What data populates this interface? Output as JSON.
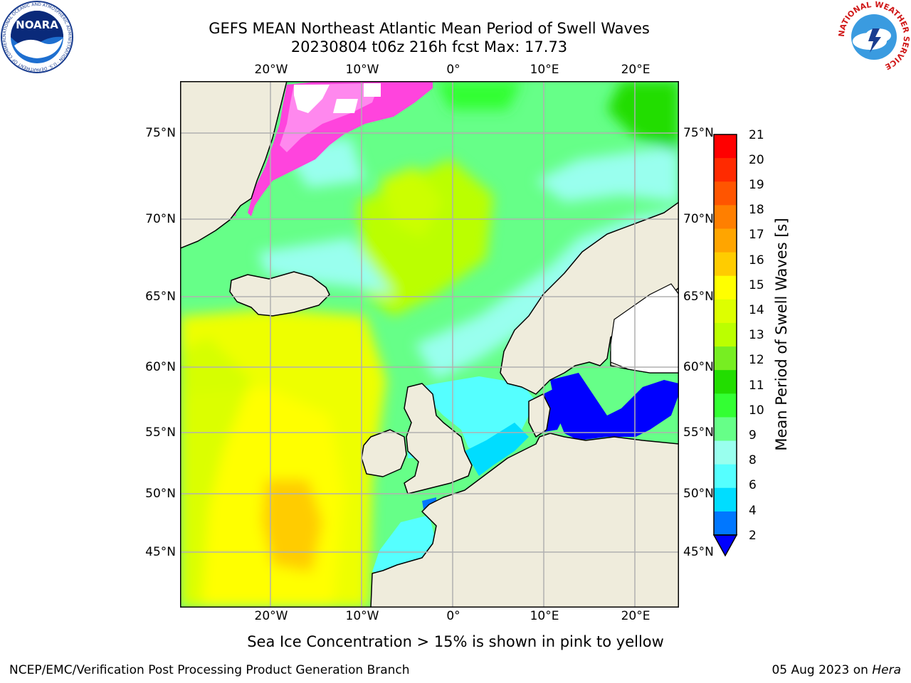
{
  "header": {
    "title_line1": "GEFS MEAN Northeast Atlantic Mean Period of Swell Waves",
    "title_line2": "20230804 t06z 216h fcst   Max: 17.73"
  },
  "logos": {
    "left": {
      "name": "NOARA",
      "ring_text": "NATIONAL OCEANIC AND ATMOSPHERIC ADMINISTRATION · U.S. DEPARTMENT OF COMMERCE"
    },
    "right": {
      "ring_text": "NATIONAL WEATHER SERVICE"
    }
  },
  "map": {
    "lon_ticks": [
      "20°W",
      "10°W",
      "0°",
      "10°E",
      "20°E"
    ],
    "lat_ticks": [
      "75°N",
      "70°N",
      "65°N",
      "60°N",
      "55°N",
      "50°N",
      "45°N"
    ],
    "land_color": "#efecdc",
    "ice_colors": [
      "#ff44dd",
      "#ff88ee",
      "#ffffff"
    ]
  },
  "colorbar": {
    "title": "Mean Period of Swell Waves [s]",
    "labels": [
      "21",
      "20",
      "19",
      "18",
      "17",
      "16",
      "15",
      "14",
      "13",
      "12",
      "11",
      "10",
      "9",
      "8",
      "6",
      "4",
      "2"
    ],
    "colors": [
      "#ff0000",
      "#ff2a00",
      "#ff5500",
      "#ff7f00",
      "#ffa500",
      "#ffcc00",
      "#ffff00",
      "#ddff00",
      "#bbff00",
      "#77ee22",
      "#22dd00",
      "#33ff33",
      "#66ff88",
      "#99ffee",
      "#55ffff",
      "#00ddff",
      "#0077ff",
      "#0000ff"
    ]
  },
  "footer": {
    "sea_ice_note": "Sea Ice Concentration > 15% is shown in pink to yellow",
    "credit": "NCEP/EMC/Verification Post Processing Product Generation Branch",
    "date": "05 Aug 2023 on ",
    "machine": "Hera"
  }
}
